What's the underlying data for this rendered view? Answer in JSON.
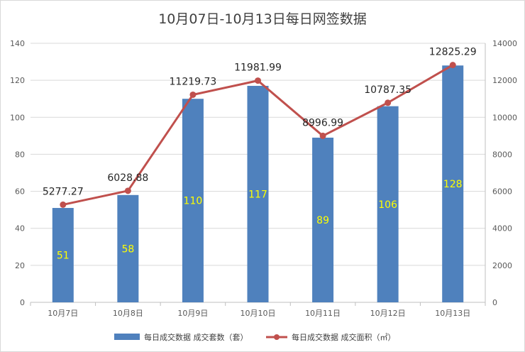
{
  "chart_data": {
    "type": "bar+line",
    "title": "10月07日-10月13日每日网签数据",
    "categories": [
      "10月7日",
      "10月8日",
      "10月9日",
      "10月10日",
      "10月11日",
      "10月12日",
      "10月13日"
    ],
    "series": [
      {
        "name": "每日成交数据 成交套数（套）",
        "type": "bar",
        "axis": "left",
        "color": "#4f81bd",
        "label_color": "#ffff00",
        "values": [
          51,
          58,
          110,
          117,
          89,
          106,
          128
        ]
      },
      {
        "name": "每日成交数据 成交面积（㎡）",
        "type": "line",
        "axis": "right",
        "color": "#c0504d",
        "values": [
          5277.27,
          6028.88,
          11219.73,
          11981.99,
          8996.99,
          10787.35,
          12825.29
        ]
      }
    ],
    "y_left": {
      "min": 0,
      "max": 140,
      "step": 20,
      "ticks": [
        "0",
        "20",
        "40",
        "60",
        "80",
        "100",
        "120",
        "140"
      ]
    },
    "y_right": {
      "min": 0,
      "max": 14000,
      "step": 2000,
      "ticks": [
        "0",
        "2000",
        "4000",
        "6000",
        "8000",
        "10000",
        "12000",
        "14000"
      ]
    },
    "grid": true,
    "legend_position": "bottom"
  }
}
